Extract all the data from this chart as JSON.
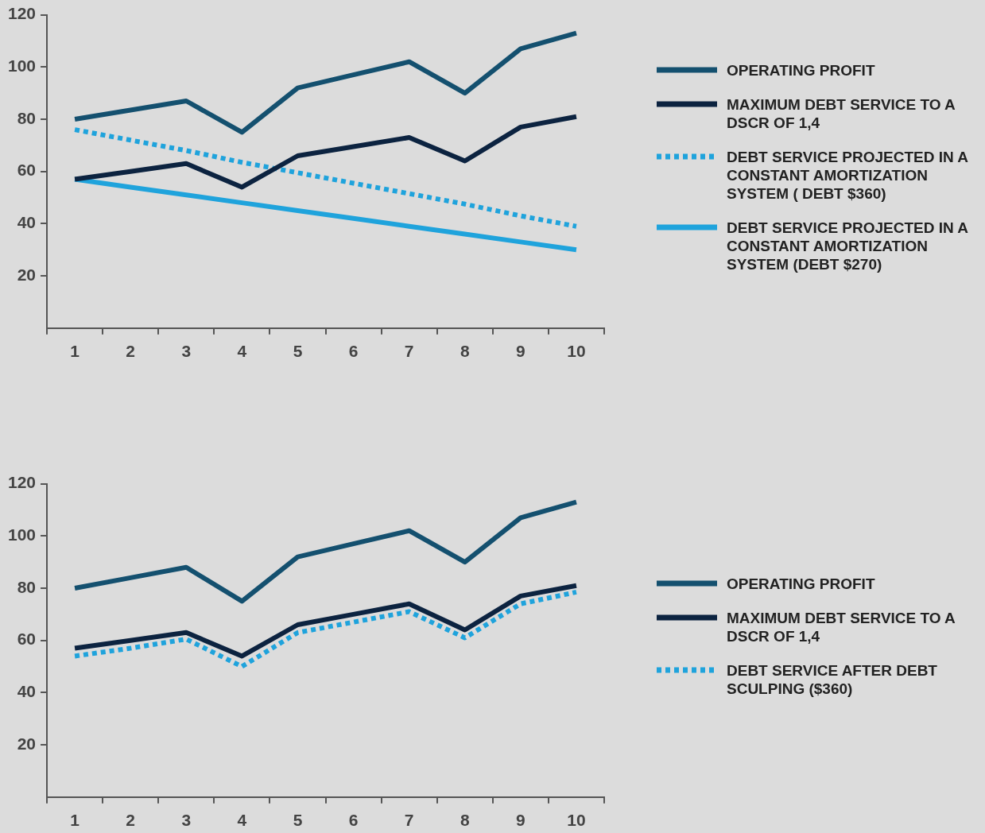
{
  "chart_data": [
    {
      "type": "line",
      "categories": [
        "1",
        "2",
        "3",
        "4",
        "5",
        "6",
        "7",
        "8",
        "9",
        "10"
      ],
      "ylim": [
        0,
        120
      ],
      "yticks": [
        20,
        40,
        60,
        80,
        100,
        120
      ],
      "grid": false,
      "marker": "none",
      "legend": "right",
      "series": [
        {
          "name": "OPERATING PROFIT",
          "color": "#14506f",
          "line_style": "solid",
          "values": [
            80,
            83.5,
            87,
            75,
            92,
            97,
            102,
            90,
            107,
            113
          ]
        },
        {
          "name": "MAXIMUM DEBT SERVICE TO A DSCR OF 1,4",
          "color": "#0c2340",
          "line_style": "solid",
          "values": [
            57,
            60,
            63,
            54,
            66,
            69.5,
            73,
            64,
            77,
            81
          ]
        },
        {
          "name": "DEBT SERVICE PROJECTED IN A CONSTANT AMORTIZATION SYSTEM ( DEBT $360)",
          "color": "#1fa3dc",
          "line_style": "dotted",
          "values": [
            76,
            72,
            68,
            63.5,
            59.5,
            55.5,
            51.5,
            47.5,
            43,
            39
          ]
        },
        {
          "name": "DEBT SERVICE PROJECTED IN A CONSTANT AMORTIZATION SYSTEM (DEBT $270)",
          "color": "#1fa3dc",
          "line_style": "solid",
          "values": [
            57,
            54,
            51,
            48,
            45,
            42,
            39,
            36,
            33,
            30
          ]
        }
      ]
    },
    {
      "type": "line",
      "categories": [
        "1",
        "2",
        "3",
        "4",
        "5",
        "6",
        "7",
        "8",
        "9",
        "10"
      ],
      "ylim": [
        0,
        120
      ],
      "yticks": [
        20,
        40,
        60,
        80,
        100,
        120
      ],
      "grid": false,
      "marker": "none",
      "legend": "right",
      "series": [
        {
          "name": "OPERATING PROFIT",
          "color": "#14506f",
          "line_style": "solid",
          "values": [
            80,
            84,
            88,
            75,
            92,
            97,
            102,
            90,
            107,
            113
          ]
        },
        {
          "name": "MAXIMUM DEBT SERVICE TO A DSCR OF 1,4",
          "color": "#0c2340",
          "line_style": "solid",
          "values": [
            57,
            60,
            63,
            54,
            66,
            70,
            74,
            64,
            77,
            81
          ]
        },
        {
          "name": "DEBT SERVICE AFTER DEBT SCULPING ($360)",
          "color": "#1fa3dc",
          "line_style": "dotted",
          "values": [
            54,
            57,
            60.5,
            50,
            63,
            67,
            71,
            61,
            74,
            78.5
          ]
        }
      ]
    }
  ]
}
